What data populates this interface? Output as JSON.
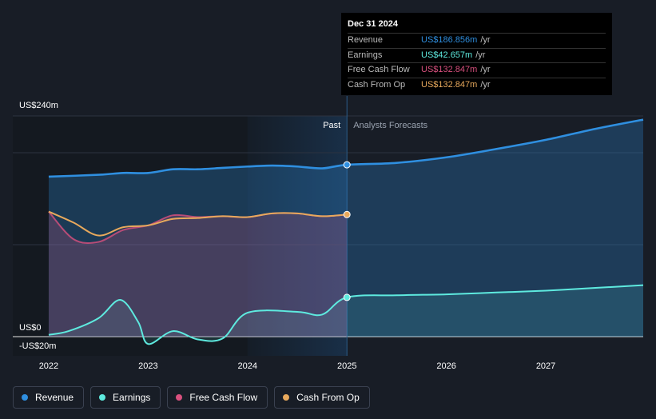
{
  "tooltip": {
    "date": "Dec 31 2024",
    "rows": [
      {
        "label": "Revenue",
        "value": "US$186.856m",
        "unit": "/yr",
        "color": "#2f8fe0"
      },
      {
        "label": "Earnings",
        "value": "US$42.657m",
        "unit": "/yr",
        "color": "#5eeadf"
      },
      {
        "label": "Free Cash Flow",
        "value": "US$132.847m",
        "unit": "/yr",
        "color": "#d9507e"
      },
      {
        "label": "Cash From Op",
        "value": "US$132.847m",
        "unit": "/yr",
        "color": "#e8a95c"
      }
    ]
  },
  "legend": [
    {
      "label": "Revenue",
      "color": "#2f8fe0"
    },
    {
      "label": "Earnings",
      "color": "#5eeadf"
    },
    {
      "label": "Free Cash Flow",
      "color": "#d9507e"
    },
    {
      "label": "Cash From Op",
      "color": "#e8a95c"
    }
  ],
  "chart_data": {
    "type": "line",
    "ylim": [
      -20,
      240
    ],
    "xlim": [
      2021.9,
      2027.98
    ],
    "y_tick_labels": [
      {
        "label": "US$240m",
        "value": 240
      },
      {
        "label": "US$0",
        "value": 0
      },
      {
        "label": "-US$20m",
        "value": -20
      }
    ],
    "x_tick_labels": [
      "2022",
      "2023",
      "2024",
      "2025",
      "2026",
      "2027"
    ],
    "x_ticks": [
      2022,
      2023,
      2024,
      2025,
      2026,
      2027
    ],
    "gridlines": [
      240,
      200,
      100,
      0
    ],
    "past_label": "Past",
    "forecast_label": "Analysts Forecasts",
    "divider_x": 2025.0,
    "highlight_start": 2024.0,
    "series": [
      {
        "name": "Revenue",
        "color": "#2f8fe0",
        "area": true,
        "points": [
          [
            2022.0,
            174
          ],
          [
            2022.5,
            176
          ],
          [
            2022.75,
            178
          ],
          [
            2023.0,
            178
          ],
          [
            2023.25,
            182
          ],
          [
            2023.5,
            182
          ],
          [
            2023.75,
            183.5
          ],
          [
            2024.0,
            185
          ],
          [
            2024.25,
            186
          ],
          [
            2024.5,
            185
          ],
          [
            2024.75,
            183
          ],
          [
            2025.0,
            186.9
          ],
          [
            2025.5,
            189
          ],
          [
            2026.0,
            195
          ],
          [
            2026.5,
            204
          ],
          [
            2027.0,
            214
          ],
          [
            2027.5,
            226
          ],
          [
            2027.98,
            236
          ]
        ]
      },
      {
        "name": "Earnings",
        "color": "#5eeadf",
        "area": true,
        "points": [
          [
            2022.0,
            2
          ],
          [
            2022.2,
            6
          ],
          [
            2022.5,
            20
          ],
          [
            2022.72,
            40
          ],
          [
            2022.9,
            16
          ],
          [
            2023.0,
            -8
          ],
          [
            2023.25,
            6
          ],
          [
            2023.5,
            -3
          ],
          [
            2023.75,
            -2
          ],
          [
            2024.0,
            26
          ],
          [
            2024.5,
            27
          ],
          [
            2024.75,
            24
          ],
          [
            2025.0,
            42.7
          ],
          [
            2025.5,
            45
          ],
          [
            2026.0,
            46
          ],
          [
            2026.5,
            48
          ],
          [
            2027.0,
            50
          ],
          [
            2027.5,
            53
          ],
          [
            2027.98,
            56
          ]
        ]
      },
      {
        "name": "Free Cash Flow",
        "color": "#d9507e",
        "area": true,
        "points": [
          [
            2022.0,
            136
          ],
          [
            2022.25,
            106
          ],
          [
            2022.5,
            103
          ],
          [
            2022.75,
            116
          ],
          [
            2023.0,
            121
          ],
          [
            2023.25,
            132
          ],
          [
            2023.5,
            130
          ],
          [
            2023.75,
            131
          ],
          [
            2024.0,
            130
          ],
          [
            2024.25,
            134
          ],
          [
            2024.5,
            134
          ],
          [
            2024.75,
            131
          ],
          [
            2025.0,
            132.8
          ]
        ]
      },
      {
        "name": "Cash From Op",
        "color": "#e8a95c",
        "area": false,
        "points": [
          [
            2022.0,
            136
          ],
          [
            2022.25,
            124
          ],
          [
            2022.5,
            110
          ],
          [
            2022.75,
            119
          ],
          [
            2023.0,
            121
          ],
          [
            2023.25,
            128
          ],
          [
            2023.5,
            129
          ],
          [
            2023.75,
            131
          ],
          [
            2024.0,
            130
          ],
          [
            2024.25,
            134
          ],
          [
            2024.5,
            134
          ],
          [
            2024.75,
            131
          ],
          [
            2025.0,
            132.8
          ]
        ]
      }
    ]
  }
}
